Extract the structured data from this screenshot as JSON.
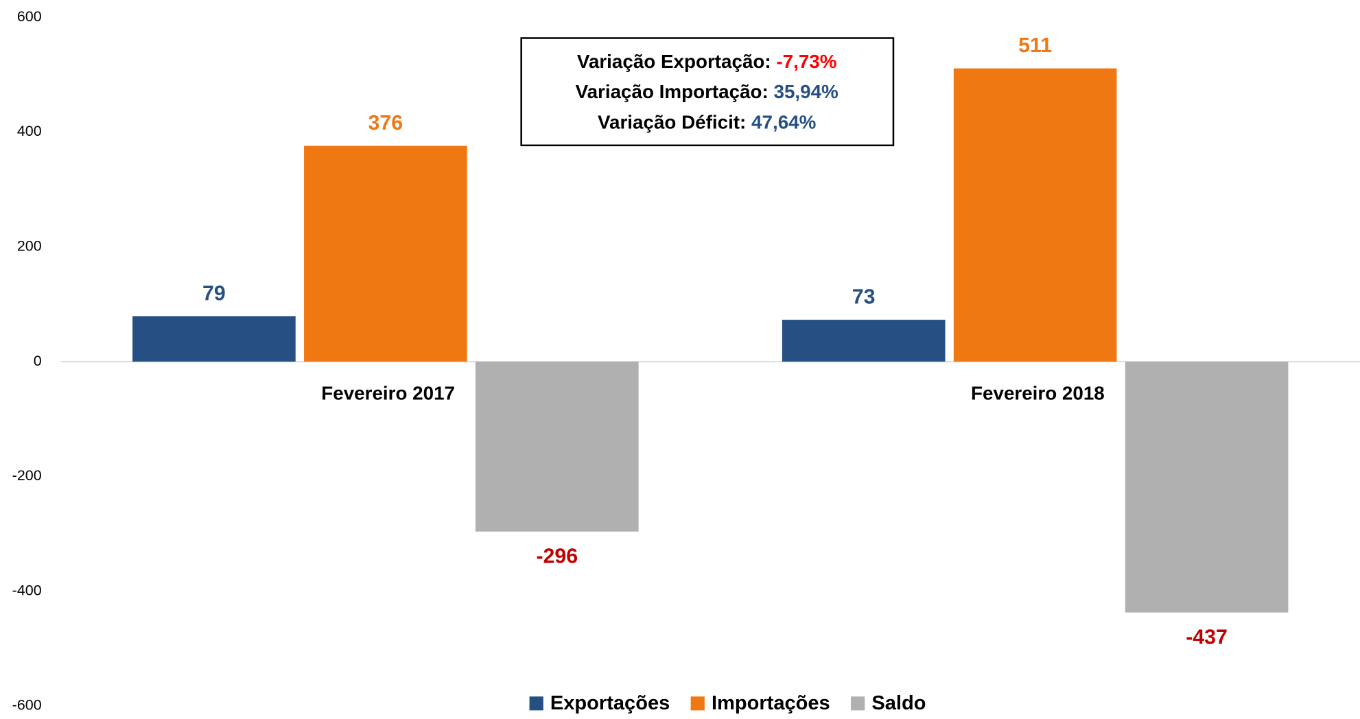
{
  "chart_data": {
    "type": "bar",
    "categories": [
      "Fevereiro 2017",
      "Fevereiro 2018"
    ],
    "series": [
      {
        "name": "Exportações",
        "color": "#264f84",
        "label_color": "#264f84",
        "values": [
          79,
          73
        ]
      },
      {
        "name": "Importações",
        "color": "#f07812",
        "label_color": "#f07812",
        "values": [
          376,
          511
        ]
      },
      {
        "name": "Saldo",
        "color": "#b0b0b0",
        "label_color": "#c00000",
        "values": [
          -296,
          -437
        ]
      }
    ],
    "ylim": [
      -600,
      600
    ],
    "yticks": [
      -600,
      -400,
      -200,
      0,
      200,
      400,
      600
    ],
    "grid": false,
    "legend": "bottom",
    "annotations": [
      {
        "label": "Variação Exportação:",
        "value": "-7,73%",
        "color": "#ff0000"
      },
      {
        "label": "Variação Importação:",
        "value": "35,94%",
        "color": "#264f84"
      },
      {
        "label": "Variação Déficit:",
        "value": "47,64%",
        "color": "#264f84"
      }
    ]
  }
}
